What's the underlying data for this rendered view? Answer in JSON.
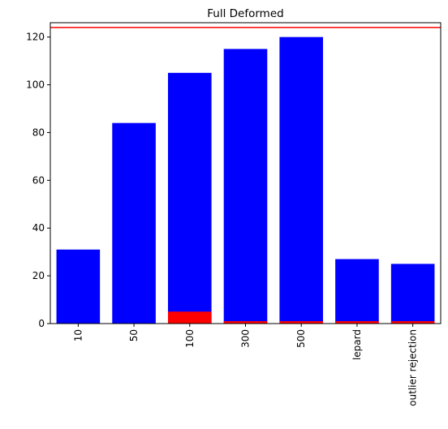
{
  "chart_data": {
    "type": "bar",
    "title": "Full Deformed",
    "xlabel": "",
    "ylabel": "",
    "categories": [
      "10",
      "50",
      "100",
      "300",
      "500",
      "lepard",
      "outlier rejection"
    ],
    "series": [
      {
        "color": "#0000ff",
        "values": [
          31,
          84,
          105,
          115,
          120,
          27,
          25
        ]
      },
      {
        "color": "#ff0000",
        "values": [
          0,
          0,
          5,
          1,
          1,
          1,
          1
        ]
      }
    ],
    "hline": {
      "y": 124,
      "color": "#ff0000"
    },
    "ylim": [
      0,
      126
    ],
    "yticks": [
      0,
      20,
      40,
      60,
      80,
      100,
      120
    ],
    "grid": false,
    "legend": "none"
  }
}
